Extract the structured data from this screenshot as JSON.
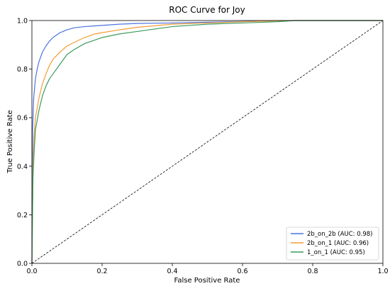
{
  "chart_data": {
    "type": "line",
    "title": "ROC Curve for Joy",
    "xlabel": "False Positive Rate",
    "ylabel": "True Positive Rate",
    "xlim": [
      0.0,
      1.0
    ],
    "ylim": [
      0.0,
      1.0
    ],
    "xticks": [
      "0.0",
      "0.2",
      "0.4",
      "0.6",
      "0.8",
      "1.0"
    ],
    "yticks": [
      "0.0",
      "0.2",
      "0.4",
      "0.6",
      "0.8",
      "1.0"
    ],
    "grid": false,
    "legend_position": "lower right",
    "series": [
      {
        "name": "2b_on_2b (AUC: 0.98)",
        "color": "#4c72e0",
        "x": [
          0.0,
          0.002,
          0.005,
          0.01,
          0.015,
          0.02,
          0.03,
          0.04,
          0.05,
          0.06,
          0.08,
          0.1,
          0.12,
          0.15,
          0.2,
          0.25,
          0.3,
          0.4,
          0.5,
          0.6,
          0.7,
          0.75,
          0.8,
          1.0
        ],
        "y": [
          0.0,
          0.55,
          0.68,
          0.76,
          0.8,
          0.83,
          0.87,
          0.895,
          0.915,
          0.93,
          0.95,
          0.962,
          0.97,
          0.975,
          0.98,
          0.985,
          0.988,
          0.99,
          0.993,
          0.996,
          0.999,
          1.0,
          1.0,
          1.0
        ]
      },
      {
        "name": "2b_on_1 (AUC: 0.96)",
        "color": "#f39c34",
        "x": [
          0.0,
          0.003,
          0.006,
          0.01,
          0.02,
          0.03,
          0.04,
          0.05,
          0.06,
          0.08,
          0.1,
          0.12,
          0.15,
          0.18,
          0.2,
          0.25,
          0.3,
          0.4,
          0.5,
          0.6,
          0.7,
          0.75,
          1.0
        ],
        "y": [
          0.0,
          0.4,
          0.52,
          0.6,
          0.68,
          0.74,
          0.78,
          0.815,
          0.84,
          0.87,
          0.895,
          0.91,
          0.93,
          0.945,
          0.95,
          0.962,
          0.972,
          0.985,
          0.99,
          0.995,
          0.999,
          1.0,
          1.0
        ]
      },
      {
        "name": "1_on_1 (AUC: 0.95)",
        "color": "#3b9a5e",
        "x": [
          0.0,
          0.003,
          0.006,
          0.01,
          0.02,
          0.03,
          0.04,
          0.05,
          0.06,
          0.08,
          0.1,
          0.12,
          0.15,
          0.18,
          0.2,
          0.25,
          0.3,
          0.4,
          0.5,
          0.6,
          0.7,
          0.75,
          1.0
        ],
        "y": [
          0.0,
          0.35,
          0.45,
          0.55,
          0.63,
          0.69,
          0.73,
          0.76,
          0.78,
          0.82,
          0.86,
          0.88,
          0.905,
          0.92,
          0.93,
          0.945,
          0.955,
          0.975,
          0.985,
          0.99,
          0.995,
          1.0,
          1.0
        ]
      }
    ],
    "reference_line": {
      "x": [
        0.0,
        1.0
      ],
      "y": [
        0.0,
        1.0
      ],
      "style": "dashed",
      "color": "#000000"
    }
  }
}
